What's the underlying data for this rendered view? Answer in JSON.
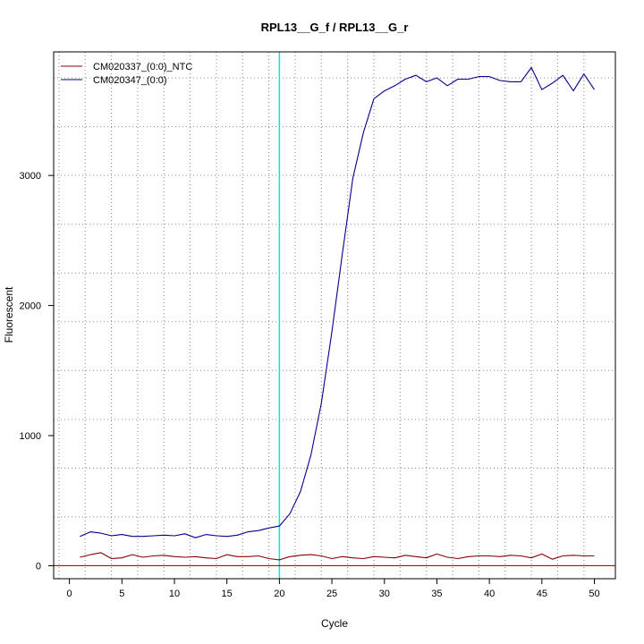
{
  "chart_data": {
    "type": "line",
    "title": "RPL13__G_f / RPL13__G_r",
    "xlabel": "Cycle",
    "ylabel": "Fluorescent",
    "xlim": [
      -1.5,
      52
    ],
    "ylim": [
      -100,
      3950
    ],
    "x_ticks": [
      0,
      5,
      10,
      15,
      20,
      25,
      30,
      35,
      40,
      45,
      50
    ],
    "y_ticks": [
      0,
      1000,
      2000,
      3000
    ],
    "grid": true,
    "legend_position": "top-left",
    "threshold": {
      "value": 0,
      "color": "#cc0000"
    },
    "vertical_marker": {
      "x": 20,
      "color": "#00e5ee"
    },
    "x": [
      1,
      2,
      3,
      4,
      5,
      6,
      7,
      8,
      9,
      10,
      11,
      12,
      13,
      14,
      15,
      16,
      17,
      18,
      19,
      20,
      21,
      22,
      23,
      24,
      25,
      26,
      27,
      28,
      29,
      30,
      31,
      32,
      33,
      34,
      35,
      36,
      37,
      38,
      39,
      40,
      41,
      42,
      43,
      44,
      45,
      46,
      47,
      48,
      49,
      50
    ],
    "series": [
      {
        "name": "CM020337_(0:0)_NTC",
        "color": "#8b0000",
        "values": [
          65,
          85,
          100,
          55,
          60,
          85,
          65,
          75,
          80,
          70,
          65,
          70,
          60,
          55,
          85,
          70,
          70,
          75,
          55,
          45,
          70,
          80,
          85,
          75,
          55,
          70,
          60,
          55,
          70,
          65,
          60,
          80,
          70,
          60,
          90,
          65,
          55,
          70,
          75,
          75,
          70,
          80,
          75,
          60,
          90,
          50,
          75,
          80,
          75,
          75
        ]
      },
      {
        "name": "CM020347_(0:0)",
        "color": "#00008b",
        "values": [
          225,
          260,
          250,
          230,
          240,
          225,
          225,
          230,
          235,
          230,
          245,
          215,
          240,
          230,
          225,
          235,
          260,
          270,
          290,
          305,
          400,
          570,
          850,
          1250,
          1800,
          2400,
          2980,
          3330,
          3590,
          3650,
          3690,
          3740,
          3770,
          3720,
          3750,
          3690,
          3740,
          3740,
          3760,
          3760,
          3730,
          3720,
          3720,
          3830,
          3660,
          3710,
          3770,
          3650,
          3780,
          3660
        ]
      }
    ]
  }
}
